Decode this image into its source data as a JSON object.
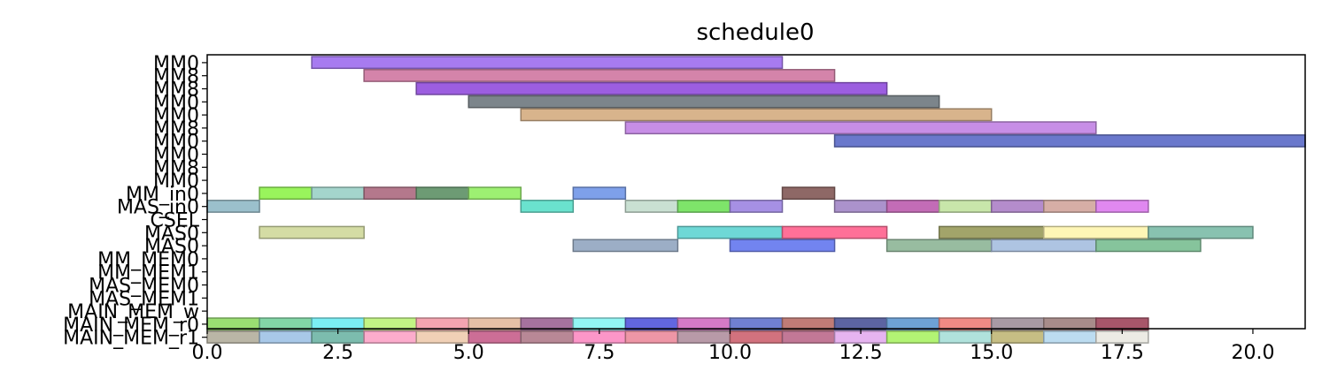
{
  "chart_data": {
    "type": "gantt",
    "title": "schedule0",
    "xlim": [
      0,
      21
    ],
    "x_ticks": [
      0.0,
      2.5,
      5.0,
      7.5,
      10.0,
      12.5,
      15.0,
      17.5,
      20.0
    ],
    "x_tick_labels": [
      "0.0",
      "2.5",
      "5.0",
      "7.5",
      "10.0",
      "12.5",
      "15.0",
      "17.5",
      "20.0"
    ],
    "y_labels": [
      "MM0",
      "MM8",
      "MM8",
      "MM0",
      "MM0",
      "MM8",
      "MM0",
      "MM0",
      "MM8",
      "MM0",
      "MM_in0",
      "MAS_in0",
      "CSEL",
      "MAS0",
      "MAS0",
      "MM_MEM0",
      "MM_MEM1",
      "MAS_MEM0",
      "MAS_MEM1",
      "MAIN_MEM_w",
      "MAIN_MEM_r0",
      "MAIN_MEM_r1"
    ],
    "tasks": [
      {
        "row": 0,
        "start": 2,
        "end": 11,
        "color": "#a77bf0"
      },
      {
        "row": 1,
        "start": 3,
        "end": 12,
        "color": "#d484aa"
      },
      {
        "row": 2,
        "start": 4,
        "end": 13,
        "color": "#9c5ee0"
      },
      {
        "row": 3,
        "start": 5,
        "end": 14,
        "color": "#7c858b"
      },
      {
        "row": 4,
        "start": 6,
        "end": 15,
        "color": "#d8b48c"
      },
      {
        "row": 5,
        "start": 8,
        "end": 17,
        "color": "#c78ee6"
      },
      {
        "row": 6,
        "start": 12,
        "end": 21,
        "color": "#6a78cc"
      },
      {
        "row": 10,
        "start": 1,
        "end": 2,
        "color": "#99f45c"
      },
      {
        "row": 10,
        "start": 2,
        "end": 3,
        "color": "#a4d5cc"
      },
      {
        "row": 10,
        "start": 3,
        "end": 4,
        "color": "#b4788c"
      },
      {
        "row": 10,
        "start": 4,
        "end": 5,
        "color": "#6d9b74"
      },
      {
        "row": 10,
        "start": 5,
        "end": 6,
        "color": "#9df072"
      },
      {
        "row": 10,
        "start": 7,
        "end": 8,
        "color": "#7ea0ea"
      },
      {
        "row": 10,
        "start": 11,
        "end": 12,
        "color": "#8e6866"
      },
      {
        "row": 11,
        "start": 0,
        "end": 1,
        "color": "#9bc0cc"
      },
      {
        "row": 11,
        "start": 6,
        "end": 7,
        "color": "#6ae2ce"
      },
      {
        "row": 11,
        "start": 8,
        "end": 9,
        "color": "#c9e0d2"
      },
      {
        "row": 11,
        "start": 9,
        "end": 10,
        "color": "#7ee46a"
      },
      {
        "row": 11,
        "start": 10,
        "end": 11,
        "color": "#a690e4"
      },
      {
        "row": 11,
        "start": 12,
        "end": 13,
        "color": "#ab92cc"
      },
      {
        "row": 11,
        "start": 13,
        "end": 14,
        "color": "#c36cb6"
      },
      {
        "row": 11,
        "start": 14,
        "end": 15,
        "color": "#c8e6aa"
      },
      {
        "row": 11,
        "start": 15,
        "end": 16,
        "color": "#b48ccc"
      },
      {
        "row": 11,
        "start": 16,
        "end": 17,
        "color": "#d6aea6"
      },
      {
        "row": 11,
        "start": 17,
        "end": 18,
        "color": "#e088f0"
      },
      {
        "row": 13,
        "start": 1,
        "end": 3,
        "color": "#d4dca4"
      },
      {
        "row": 13,
        "start": 9,
        "end": 11,
        "color": "#6ed8d6"
      },
      {
        "row": 13,
        "start": 11,
        "end": 13,
        "color": "#ff7098"
      },
      {
        "row": 13,
        "start": 14,
        "end": 16,
        "color": "#a2a46a"
      },
      {
        "row": 13,
        "start": 16,
        "end": 18,
        "color": "#fef6b6"
      },
      {
        "row": 13,
        "start": 18,
        "end": 20,
        "color": "#88c2b0"
      },
      {
        "row": 14,
        "start": 7,
        "end": 9,
        "color": "#9caec6"
      },
      {
        "row": 14,
        "start": 10,
        "end": 12,
        "color": "#7284f0"
      },
      {
        "row": 14,
        "start": 13,
        "end": 15,
        "color": "#98bca0"
      },
      {
        "row": 14,
        "start": 15,
        "end": 17,
        "color": "#aec4e2"
      },
      {
        "row": 14,
        "start": 17,
        "end": 19,
        "color": "#86c49c"
      },
      {
        "row": 20,
        "start": 0,
        "end": 1,
        "color": "#9ade72"
      },
      {
        "row": 20,
        "start": 1,
        "end": 2,
        "color": "#82d6a6"
      },
      {
        "row": 20,
        "start": 2,
        "end": 3,
        "color": "#7aeef4"
      },
      {
        "row": 20,
        "start": 3,
        "end": 4,
        "color": "#c2f484"
      },
      {
        "row": 20,
        "start": 4,
        "end": 5,
        "color": "#f4a4b0"
      },
      {
        "row": 20,
        "start": 5,
        "end": 6,
        "color": "#e6c0a6"
      },
      {
        "row": 20,
        "start": 6,
        "end": 7,
        "color": "#a6729e"
      },
      {
        "row": 20,
        "start": 7,
        "end": 8,
        "color": "#92f6f4"
      },
      {
        "row": 20,
        "start": 8,
        "end": 9,
        "color": "#6266e0"
      },
      {
        "row": 20,
        "start": 9,
        "end": 10,
        "color": "#d67ac6"
      },
      {
        "row": 20,
        "start": 10,
        "end": 11,
        "color": "#7080d2"
      },
      {
        "row": 20,
        "start": 11,
        "end": 12,
        "color": "#c07c76"
      },
      {
        "row": 20,
        "start": 12,
        "end": 13,
        "color": "#5c64a2"
      },
      {
        "row": 20,
        "start": 13,
        "end": 14,
        "color": "#6ea2d6"
      },
      {
        "row": 20,
        "start": 14,
        "end": 15,
        "color": "#f08a84"
      },
      {
        "row": 20,
        "start": 15,
        "end": 16,
        "color": "#a89aa4"
      },
      {
        "row": 20,
        "start": 16,
        "end": 17,
        "color": "#a88c8a"
      },
      {
        "row": 20,
        "start": 17,
        "end": 18,
        "color": "#a8566a"
      },
      {
        "row": 21,
        "start": 0,
        "end": 1,
        "color": "#bab6a6"
      },
      {
        "row": 21,
        "start": 1,
        "end": 2,
        "color": "#a8c8e8"
      },
      {
        "row": 21,
        "start": 2,
        "end": 3,
        "color": "#7cbcae"
      },
      {
        "row": 21,
        "start": 3,
        "end": 4,
        "color": "#fcaccc"
      },
      {
        "row": 21,
        "start": 4,
        "end": 5,
        "color": "#f0d0b6"
      },
      {
        "row": 21,
        "start": 5,
        "end": 6,
        "color": "#cc6e96"
      },
      {
        "row": 21,
        "start": 6,
        "end": 7,
        "color": "#b88896"
      },
      {
        "row": 21,
        "start": 7,
        "end": 8,
        "color": "#fc96c8"
      },
      {
        "row": 21,
        "start": 8,
        "end": 9,
        "color": "#ee96a6"
      },
      {
        "row": 21,
        "start": 9,
        "end": 10,
        "color": "#b89aa8"
      },
      {
        "row": 21,
        "start": 10,
        "end": 11,
        "color": "#d2727e"
      },
      {
        "row": 21,
        "start": 11,
        "end": 12,
        "color": "#c27896"
      },
      {
        "row": 21,
        "start": 12,
        "end": 13,
        "color": "#e6b4f0"
      },
      {
        "row": 21,
        "start": 13,
        "end": 14,
        "color": "#b2f474"
      },
      {
        "row": 21,
        "start": 14,
        "end": 15,
        "color": "#b0e2dc"
      },
      {
        "row": 21,
        "start": 15,
        "end": 16,
        "color": "#c6be84"
      },
      {
        "row": 21,
        "start": 16,
        "end": 17,
        "color": "#bcdcf0"
      },
      {
        "row": 21,
        "start": 17,
        "end": 18,
        "color": "#ecebe4"
      }
    ]
  }
}
